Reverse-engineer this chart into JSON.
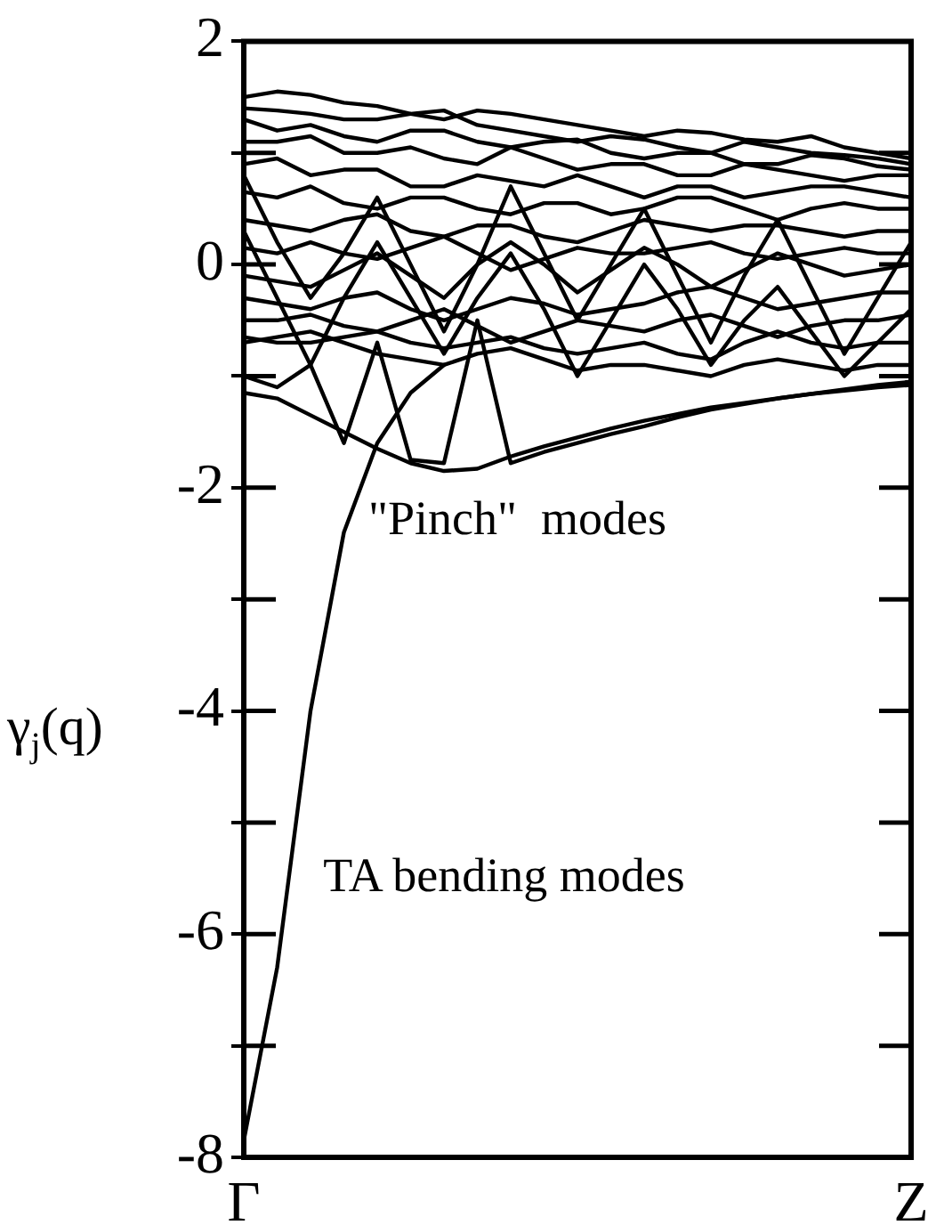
{
  "chart_data": {
    "type": "line",
    "ylabel": "γ$_{j}$(q)",
    "categories": [
      "Γ",
      null,
      null,
      null,
      null,
      null,
      null,
      null,
      null,
      null,
      null,
      null,
      null,
      null,
      null,
      null,
      null,
      null,
      null,
      null,
      "Z"
    ],
    "ylim": [
      -8,
      2
    ],
    "yticks": [
      -8,
      {
        "value": -7,
        "label": null
      },
      -6,
      {
        "value": -5,
        "label": null
      },
      -4,
      {
        "value": -3,
        "label": null
      },
      -2,
      {
        "value": -1,
        "label": null
      },
      0,
      {
        "value": 1,
        "label": null
      },
      2
    ],
    "grid": false,
    "legend": false,
    "marker": "none",
    "line_style": "solid",
    "annotations": [
      "\"Pinch\"  modes",
      "TA bending modes"
    ],
    "series": [
      {
        "color": "#000000",
        "values": [
          -7.85,
          -6.3,
          -4.0,
          -2.4,
          -1.6,
          -1.15,
          -0.9,
          null,
          null,
          null,
          null,
          null,
          null,
          null,
          null,
          null,
          null,
          null,
          null,
          null,
          null
        ]
      },
      {
        "color": "#000000",
        "values": [
          -1.15,
          -1.2,
          -1.35,
          -1.5,
          -1.65,
          -1.78,
          -1.85,
          -1.83,
          -1.72,
          -1.63,
          -1.55,
          -1.47,
          -1.4,
          -1.34,
          -1.28,
          -1.24,
          -1.2,
          -1.16,
          -1.13,
          -1.1,
          -1.08
        ]
      },
      {
        "color": "#000000",
        "values": [
          -1.0,
          -1.1,
          -0.9,
          -1.6,
          -0.7,
          -1.75,
          -1.78,
          -0.5,
          -1.78,
          -1.68,
          -1.6,
          -1.52,
          -1.45,
          -1.37,
          -1.3,
          -1.25,
          -1.2,
          -1.16,
          -1.12,
          -1.08,
          -1.05
        ]
      },
      {
        "color": "#000000",
        "values": [
          1.5,
          1.55,
          1.52,
          1.45,
          1.42,
          1.35,
          1.3,
          1.38,
          1.35,
          1.3,
          1.25,
          1.2,
          1.15,
          1.2,
          1.18,
          1.12,
          1.1,
          1.15,
          1.05,
          1.0,
          0.95
        ]
      },
      {
        "color": "#000000",
        "values": [
          1.4,
          1.38,
          1.35,
          1.3,
          1.3,
          1.35,
          1.38,
          1.25,
          1.2,
          1.15,
          1.1,
          1.15,
          1.12,
          1.05,
          1.0,
          1.1,
          1.05,
          1.0,
          0.98,
          0.95,
          0.9
        ]
      },
      {
        "color": "#000000",
        "values": [
          1.3,
          1.2,
          1.25,
          1.15,
          1.1,
          1.2,
          1.2,
          1.1,
          1.05,
          1.1,
          1.12,
          1.0,
          0.95,
          1.0,
          1.0,
          0.9,
          0.9,
          0.98,
          0.95,
          0.88,
          0.85
        ]
      },
      {
        "color": "#000000",
        "values": [
          1.1,
          1.1,
          1.15,
          1.0,
          1.0,
          1.05,
          0.95,
          0.9,
          1.05,
          0.95,
          0.85,
          0.9,
          0.9,
          0.8,
          0.8,
          0.9,
          0.85,
          0.8,
          0.75,
          0.8,
          0.8
        ]
      },
      {
        "color": "#000000",
        "values": [
          0.9,
          0.95,
          0.8,
          0.85,
          0.85,
          0.7,
          0.7,
          0.8,
          0.75,
          0.7,
          0.8,
          0.7,
          0.6,
          0.7,
          0.7,
          0.6,
          0.65,
          0.7,
          0.7,
          0.65,
          0.6
        ]
      },
      {
        "color": "#000000",
        "values": [
          0.65,
          0.6,
          0.7,
          0.55,
          0.5,
          0.6,
          0.6,
          0.5,
          0.45,
          0.55,
          0.55,
          0.45,
          0.5,
          0.6,
          0.6,
          0.5,
          0.4,
          0.5,
          0.55,
          0.5,
          0.5
        ]
      },
      {
        "color": "#000000",
        "values": [
          0.4,
          0.35,
          0.3,
          0.4,
          0.45,
          0.3,
          0.25,
          0.35,
          0.35,
          0.25,
          0.2,
          0.3,
          0.4,
          0.35,
          0.3,
          0.35,
          0.35,
          0.3,
          0.25,
          0.3,
          0.3
        ]
      },
      {
        "color": "#000000",
        "values": [
          0.15,
          0.1,
          0.2,
          0.1,
          0.05,
          0.15,
          0.25,
          0.1,
          -0.05,
          0.05,
          0.15,
          0.1,
          0.1,
          0.15,
          0.2,
          0.1,
          0.05,
          0.1,
          0.15,
          0.1,
          0.1
        ]
      },
      {
        "color": "#000000",
        "values": [
          -0.1,
          -0.15,
          -0.2,
          -0.05,
          0.1,
          -0.1,
          -0.3,
          0.0,
          0.2,
          0.0,
          -0.25,
          -0.05,
          0.15,
          0.0,
          -0.2,
          -0.05,
          0.1,
          0.0,
          -0.1,
          -0.05,
          0.0
        ]
      },
      {
        "color": "#000000",
        "values": [
          -0.3,
          -0.35,
          -0.4,
          -0.3,
          -0.25,
          -0.4,
          -0.5,
          -0.4,
          -0.3,
          -0.35,
          -0.45,
          -0.4,
          -0.35,
          -0.25,
          -0.2,
          -0.3,
          -0.4,
          -0.35,
          -0.3,
          -0.25,
          -0.25
        ]
      },
      {
        "color": "#000000",
        "values": [
          -0.5,
          -0.5,
          -0.45,
          -0.55,
          -0.6,
          -0.5,
          -0.4,
          -0.55,
          -0.7,
          -0.6,
          -0.5,
          -0.55,
          -0.6,
          -0.5,
          -0.45,
          -0.55,
          -0.65,
          -0.55,
          -0.5,
          -0.5,
          -0.45
        ]
      },
      {
        "color": "#000000",
        "values": [
          -0.65,
          -0.7,
          -0.7,
          -0.65,
          -0.6,
          -0.7,
          -0.75,
          -0.7,
          -0.65,
          -0.75,
          -0.8,
          -0.75,
          -0.7,
          -0.8,
          -0.85,
          -0.7,
          -0.6,
          -0.7,
          -0.75,
          -0.7,
          -0.7
        ]
      },
      {
        "color": "#000000",
        "values": [
          -0.7,
          -0.65,
          -0.6,
          -0.7,
          -0.8,
          -0.85,
          -0.9,
          -0.8,
          -0.75,
          -0.85,
          -0.95,
          -0.9,
          -0.9,
          -0.95,
          -1.0,
          -0.9,
          -0.85,
          -0.9,
          -0.95,
          -0.9,
          -0.9
        ]
      },
      {
        "color": "#000000",
        "values": [
          0.3,
          -0.3,
          -0.9,
          -0.3,
          0.2,
          -0.3,
          -0.8,
          -0.3,
          0.1,
          -0.4,
          -1.0,
          -0.5,
          0.0,
          -0.4,
          -0.9,
          -0.5,
          -0.2,
          -0.6,
          -1.0,
          -0.7,
          -0.4
        ]
      },
      {
        "color": "#000000",
        "values": [
          0.8,
          0.2,
          -0.3,
          0.1,
          0.6,
          0.0,
          -0.6,
          0.0,
          0.7,
          0.1,
          -0.5,
          0.0,
          0.5,
          -0.1,
          -0.7,
          -0.1,
          0.4,
          -0.2,
          -0.8,
          -0.3,
          0.2
        ]
      }
    ]
  }
}
